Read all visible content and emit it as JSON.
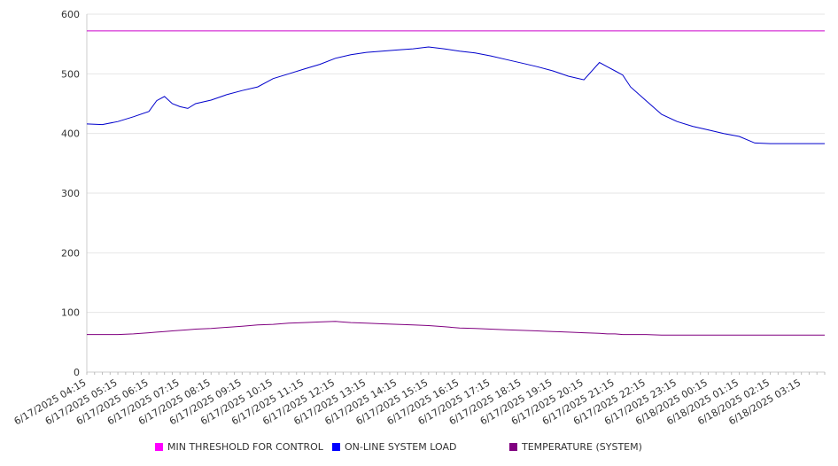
{
  "chart_data": {
    "type": "line",
    "title": "",
    "xlabel": "",
    "ylabel": "",
    "ylim": [
      0,
      600
    ],
    "y_ticks": [
      0,
      100,
      200,
      300,
      400,
      500,
      600
    ],
    "grid": "horizontal",
    "legend_position": "bottom",
    "x_tick_labels": [
      "6/17/2025 04:15",
      "6/17/2025 05:15",
      "6/17/2025 06:15",
      "6/17/2025 07:15",
      "6/17/2025 08:15",
      "6/17/2025 09:15",
      "6/17/2025 10:15",
      "6/17/2025 11:15",
      "6/17/2025 12:15",
      "6/17/2025 13:15",
      "6/17/2025 14:15",
      "6/17/2025 15:15",
      "6/17/2025 16:15",
      "6/17/2025 17:15",
      "6/17/2025 18:15",
      "6/17/2025 19:15",
      "6/17/2025 20:15",
      "6/17/2025 21:15",
      "6/17/2025 22:15",
      "6/17/2025 23:15",
      "6/18/2025 00:15",
      "6/18/2025 01:15",
      "6/18/2025 02:15",
      "6/18/2025 03:15"
    ],
    "x_hours": [
      "04:15",
      "04:45",
      "05:15",
      "05:45",
      "06:15",
      "06:30",
      "06:45",
      "07:00",
      "07:15",
      "07:30",
      "07:45",
      "08:15",
      "08:45",
      "09:15",
      "09:45",
      "10:15",
      "10:45",
      "11:15",
      "11:45",
      "12:15",
      "12:45",
      "13:15",
      "13:45",
      "14:15",
      "14:45",
      "15:15",
      "15:45",
      "16:15",
      "16:45",
      "17:15",
      "17:45",
      "18:15",
      "18:45",
      "19:15",
      "19:45",
      "20:15",
      "20:45",
      "21:00",
      "21:15",
      "21:30",
      "21:45",
      "22:15",
      "22:45",
      "23:15",
      "23:45",
      "00:15",
      "00:45",
      "01:15",
      "01:45",
      "02:15",
      "02:45",
      "03:15",
      "03:45",
      "04:00"
    ],
    "series": [
      {
        "name": "MIN THRESHOLD FOR CONTROL",
        "color": "#cc00cc",
        "values": [
          572,
          572,
          572,
          572,
          572,
          572,
          572,
          572,
          572,
          572,
          572,
          572,
          572,
          572,
          572,
          572,
          572,
          572,
          572,
          572,
          572,
          572,
          572,
          572,
          572,
          572,
          572,
          572,
          572,
          572,
          572,
          572,
          572,
          572,
          572,
          572,
          572,
          572,
          572,
          572,
          572,
          572,
          572,
          572,
          572,
          572,
          572,
          572,
          572,
          572,
          572,
          572,
          572,
          572
        ]
      },
      {
        "name": "ON-LINE SYSTEM LOAD",
        "color": "#0000cc",
        "values": [
          416,
          415,
          420,
          428,
          437,
          455,
          462,
          450,
          445,
          442,
          450,
          456,
          465,
          472,
          478,
          492,
          500,
          508,
          516,
          526,
          532,
          536,
          538,
          540,
          542,
          545,
          542,
          538,
          535,
          530,
          524,
          518,
          512,
          505,
          496,
          490,
          519,
          512,
          505,
          498,
          478,
          455,
          432,
          420,
          412,
          406,
          400,
          395,
          384,
          383,
          383,
          383,
          383,
          383
        ]
      },
      {
        "name": "TEMPERATURE (SYSTEM)",
        "color": "#800080",
        "values": [
          63,
          63,
          63,
          64,
          66,
          67,
          68,
          69,
          70,
          71,
          72,
          73,
          75,
          77,
          79,
          80,
          82,
          83,
          84,
          85,
          83,
          82,
          81,
          80,
          79,
          78,
          76,
          74,
          73,
          72,
          71,
          70,
          69,
          68,
          67,
          66,
          65,
          64,
          64,
          63,
          63,
          63,
          62,
          62,
          62,
          62,
          62,
          62,
          62,
          62,
          62,
          62,
          62,
          62
        ]
      }
    ]
  }
}
